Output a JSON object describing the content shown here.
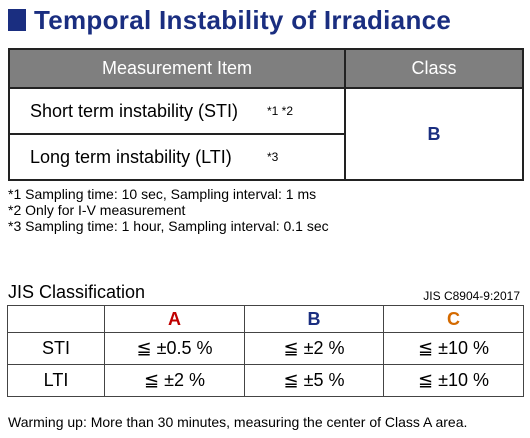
{
  "title": "Temporal Instability of Irradiance",
  "top_table": {
    "headers": [
      "Measurement Item",
      "Class"
    ],
    "rows": [
      {
        "item": "Short term instability (STI)",
        "notes": "*1 *2"
      },
      {
        "item": "Long term instability (LTI)",
        "notes": "*3"
      }
    ],
    "class_value": "B"
  },
  "notes": [
    "*1 Sampling time: 10 sec, Sampling interval: 1 ms",
    "*2 Only for I-V measurement",
    "*3 Sampling time: 1 hour, Sampling interval: 0.1 sec"
  ],
  "jis": {
    "title": "JIS Classification",
    "standard": "JIS C8904-9:2017",
    "headers": [
      "",
      "A",
      "B",
      "C"
    ],
    "header_colors": {
      "A": "#c00000",
      "B": "#1a2e80",
      "C": "#d46a00"
    },
    "rows": [
      {
        "label": "STI",
        "values": [
          "≦ ±0.5 %",
          "≦ ±2 %",
          "≦ ±10 %"
        ]
      },
      {
        "label": "LTI",
        "values": [
          "≦ ±2 %",
          "≦ ±5 %",
          "≦ ±10 %"
        ]
      }
    ]
  },
  "footer": "Warming up: More than 30 minutes, measuring the center of Class A area."
}
